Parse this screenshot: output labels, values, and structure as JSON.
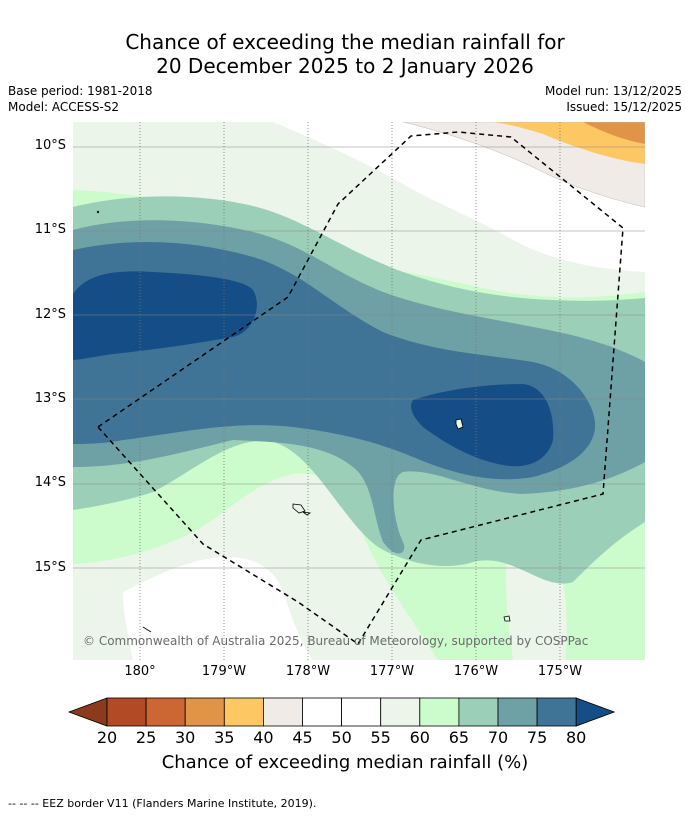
{
  "title": {
    "line1": "Chance of exceeding the median rainfall for",
    "line2": "20 December 2025 to 2 January 2026"
  },
  "meta": {
    "base_period": "Base period: 1981-2018",
    "model": "Model: ACCESS-S2",
    "model_run": "Model run: 13/12/2025",
    "issued": "Issued: 15/12/2025"
  },
  "map": {
    "lat_labels": [
      "10°S",
      "11°S",
      "12°S",
      "13°S",
      "14°S",
      "15°S"
    ],
    "lon_labels": [
      "180°",
      "179°W",
      "178°W",
      "177°W",
      "176°W",
      "175°W"
    ],
    "copyright": "© Commonwealth of Australia 2025, Bureau of Meteorology, supported by COSPPac"
  },
  "colorbar": {
    "ticks": [
      "20",
      "25",
      "30",
      "35",
      "40",
      "45",
      "50",
      "55",
      "60",
      "65",
      "70",
      "75",
      "80"
    ],
    "colors": [
      "#8b3a1e",
      "#b34a26",
      "#cc6633",
      "#e09448",
      "#fdc764",
      "#f0ebe6",
      "#ffffff",
      "#ffffff",
      "#ebf5ea",
      "#ccfccc",
      "#9ccfb8",
      "#6ea1a5",
      "#3f7496",
      "#154e87"
    ],
    "label": "Chance of exceeding median rainfall (%)"
  },
  "footer": {
    "eez_note": "--  --  -- EEZ border V11 (Flanders Marine Institute, 2019)."
  }
}
